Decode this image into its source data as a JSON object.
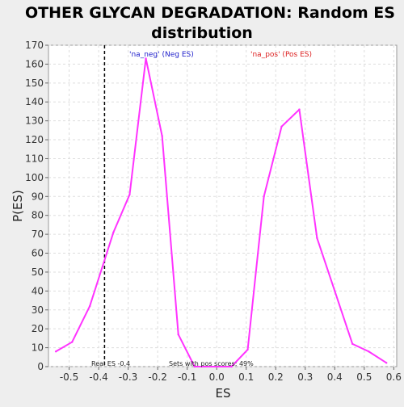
{
  "chart_data": {
    "type": "line",
    "title_lines": [
      "OTHER GLYCAN DEGRADATION: Random ES",
      "distribution"
    ],
    "xlabel": "ES",
    "ylabel": "P(ES)",
    "xlim": [
      -0.57,
      0.61
    ],
    "ylim": [
      0,
      170
    ],
    "x_ticks": [
      -0.5,
      -0.4,
      -0.3,
      -0.2,
      -0.1,
      0.0,
      0.1,
      0.2,
      0.3,
      0.4,
      0.5,
      0.6
    ],
    "x_tick_labels": [
      "-0.5",
      "-0.4",
      "-0.3",
      "-0.2",
      "-0.1",
      "0.0",
      "0.1",
      "0.2",
      "0.3",
      "0.4",
      "0.5",
      "0.6"
    ],
    "y_ticks": [
      0,
      10,
      20,
      30,
      40,
      50,
      60,
      70,
      80,
      90,
      100,
      110,
      120,
      130,
      140,
      150,
      160,
      170
    ],
    "y_tick_labels": [
      "0",
      "10",
      "20",
      "30",
      "40",
      "50",
      "60",
      "70",
      "80",
      "90",
      "100",
      "110",
      "120",
      "130",
      "140",
      "150",
      "160",
      "170"
    ],
    "grid": true,
    "series": [
      {
        "color": "#ff33ff",
        "x": [
          -0.545,
          -0.49,
          -0.43,
          -0.35,
          -0.295,
          -0.24,
          -0.185,
          -0.13,
          -0.075,
          0.0,
          0.05,
          0.105,
          0.16,
          0.22,
          0.28,
          0.34,
          0.4,
          0.46,
          0.515,
          0.575
        ],
        "y": [
          8,
          13,
          32,
          71,
          91,
          163,
          122,
          17,
          0,
          0,
          0,
          9,
          90,
          127,
          136,
          68,
          40,
          12,
          8,
          2
        ]
      }
    ],
    "annotations": {
      "neg_label": "'na_neg' (Neg ES)",
      "neg_color": "#2222cc",
      "pos_label": "'na_pos' (Pos ES)",
      "pos_color": "#dd2222",
      "real_es_x": -0.38,
      "real_es_label": "Real ES -0.4",
      "pos_scores_label": "Sets with pos scores: 49%"
    }
  }
}
